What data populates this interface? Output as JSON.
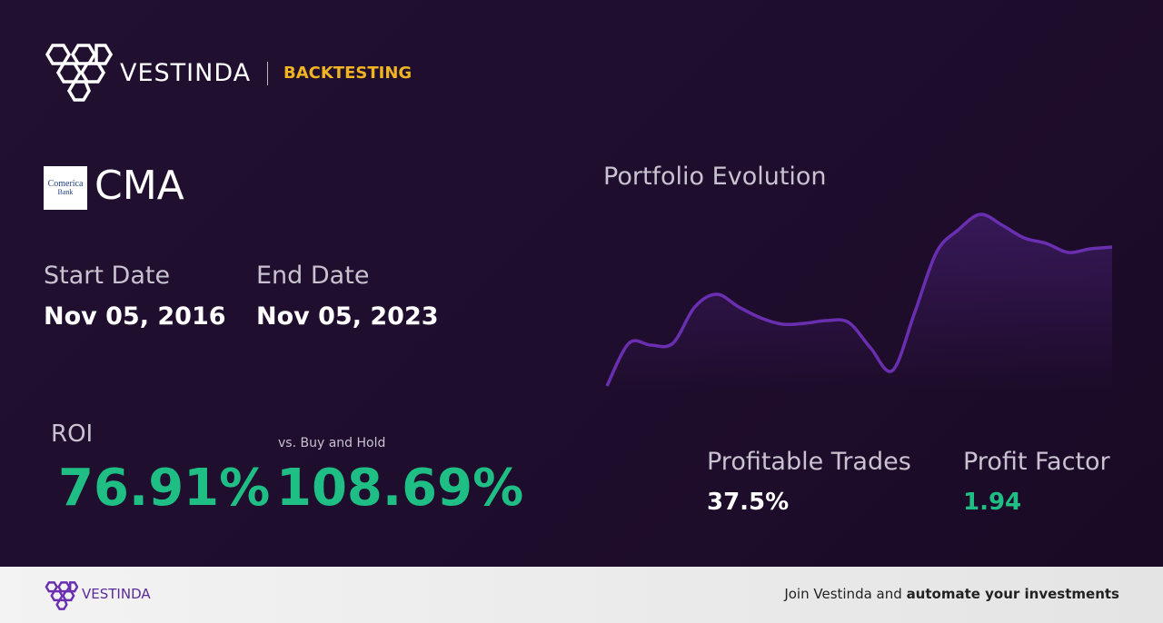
{
  "header": {
    "brand": "VESTINDA",
    "section": "BACKTESTING"
  },
  "asset": {
    "logo_text": [
      "Comerica",
      "Bank"
    ],
    "ticker": "CMA"
  },
  "dates": {
    "start_label": "Start Date",
    "start": "Nov 05, 2016",
    "end_label": "End Date",
    "end": "Nov 05, 2023"
  },
  "roi": {
    "label": "ROI",
    "value": "76.91%"
  },
  "buy_hold": {
    "label": "vs. Buy and Hold",
    "value": "108.69%"
  },
  "profitable_trades": {
    "label": "Profitable Trades",
    "value": "37.5%"
  },
  "profit_factor": {
    "label": "Profit Factor",
    "value": "1.94"
  },
  "chart_data": {
    "type": "line",
    "title": "Portfolio Evolution",
    "color": "#6a2fb0",
    "values": [
      2.5,
      26,
      25,
      26,
      46,
      53,
      46,
      40,
      36.5,
      37,
      38.5,
      37.5,
      23.5,
      11,
      42.5,
      76,
      88.5,
      97,
      91,
      84,
      81,
      76,
      78,
      79
    ],
    "ylim": [
      0,
      100
    ]
  },
  "footer": {
    "brand": "VESTINDA",
    "cta_text": "Join Vestinda and",
    "cta_bold": "automate your investments"
  }
}
